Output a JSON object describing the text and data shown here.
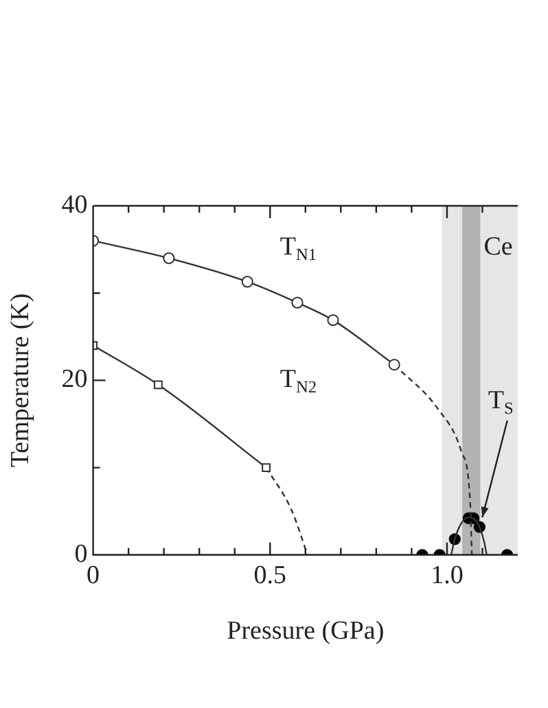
{
  "chart_data": {
    "type": "line",
    "xlabel": "Pressure (GPa)",
    "ylabel": "Temperature (K)",
    "xlim": [
      0,
      1.2
    ],
    "ylim": [
      0,
      40
    ],
    "xticks": [
      0,
      {
        "value": 0.1,
        "label": null
      },
      {
        "value": 0.2,
        "label": null
      },
      {
        "value": 0.3,
        "label": null
      },
      {
        "value": 0.4,
        "label": null
      },
      0.5,
      {
        "value": 0.6,
        "label": null
      },
      {
        "value": 0.7,
        "label": null
      },
      {
        "value": 0.8,
        "label": null
      },
      {
        "value": 0.9,
        "label": null
      },
      {
        "value": 1.0,
        "label": "1.0"
      },
      {
        "value": 1.1,
        "label": null
      }
    ],
    "yticks": [
      0,
      {
        "value": 10,
        "label": null
      },
      20,
      {
        "value": 30,
        "label": null
      },
      40
    ],
    "grid": false,
    "legend": false,
    "series": [
      {
        "marker": "circle",
        "line_style": "solid",
        "color": "#333333",
        "x": [
          0,
          0.214,
          0.436,
          0.577,
          0.678,
          0.851
        ],
        "values": [
          36,
          34,
          31.3,
          28.9,
          26.9,
          21.8
        ]
      },
      {
        "marker": "none",
        "line_style": "dashed",
        "color": "#333333",
        "x": [
          0.851,
          0.975,
          1.04,
          1.066,
          1.07
        ],
        "values": [
          21.8,
          16.7,
          11.9,
          5.7,
          0
        ]
      },
      {
        "marker": "square",
        "line_style": "solid",
        "color": "#333333",
        "x": [
          0,
          0.184,
          0.489
        ],
        "values": [
          24,
          19.5,
          10
        ]
      },
      {
        "marker": "none",
        "line_style": "dashed",
        "color": "#333333",
        "x": [
          0.489,
          0.56,
          0.606
        ],
        "values": [
          10,
          5.2,
          0
        ]
      },
      {
        "marker": "none",
        "line_style": "solid",
        "color": "#333333",
        "x": [
          1.012,
          1.022,
          1.04,
          1.06,
          1.08,
          1.092,
          1.105,
          1.112
        ],
        "values": [
          0,
          1.8,
          3.6,
          4.3,
          4,
          3.2,
          1.5,
          0
        ]
      },
      {
        "type": "scatter",
        "marker": "circle",
        "color": "#000000",
        "x": [
          0.93,
          0.979,
          1.022,
          1.061,
          1.075,
          1.092,
          1.17
        ],
        "values": [
          0,
          0,
          1.8,
          4.2,
          4.2,
          3.2,
          0
        ]
      }
    ],
    "bands": [
      {
        "axis": "x",
        "from": 0.985,
        "to": 1.2,
        "color": "#e6e6e6"
      },
      {
        "axis": "x",
        "from": 1.043,
        "to": 1.094,
        "color": "#b3b3b3"
      }
    ],
    "annotations": [
      "T$_{N1}$",
      "T$_{N2}$",
      "Ce",
      {
        "text": "T$_{S}$",
        "x": 1.092,
        "y": 3.2
      }
    ]
  }
}
